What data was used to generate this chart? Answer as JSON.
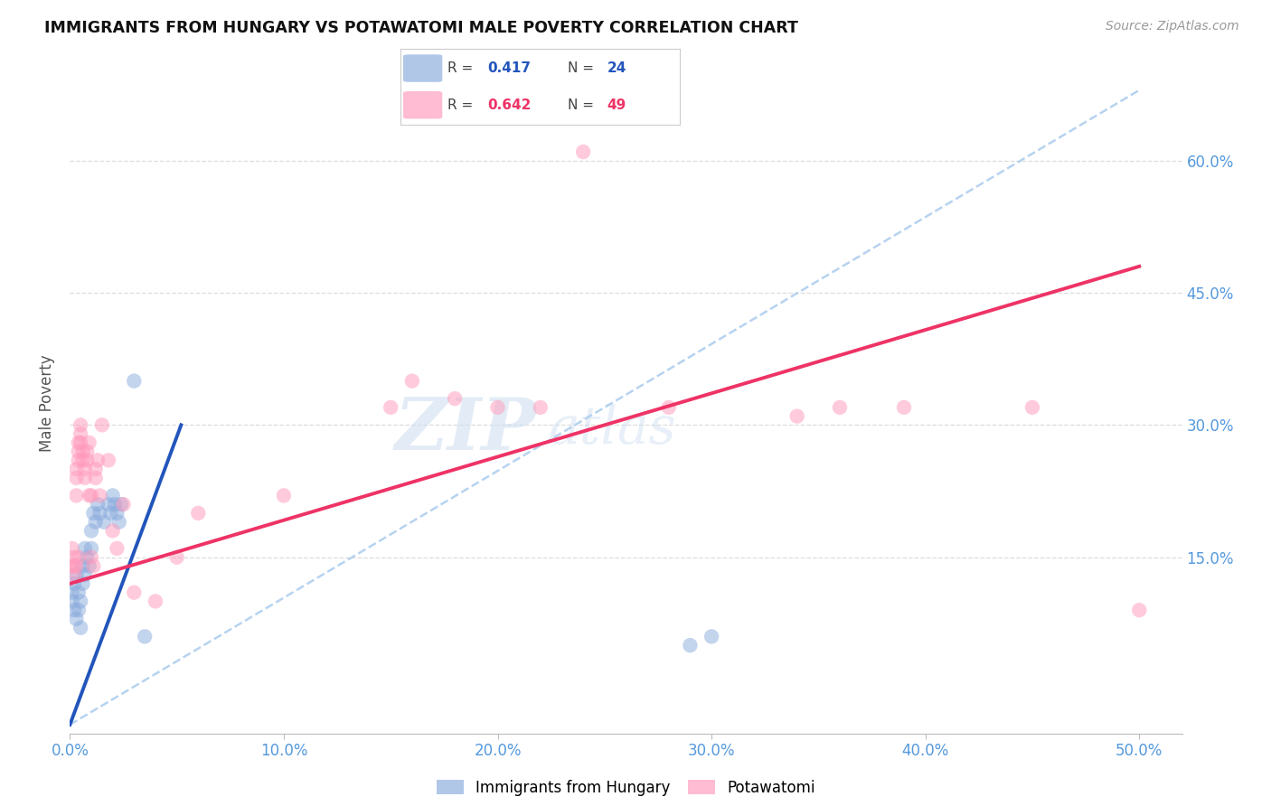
{
  "title": "IMMIGRANTS FROM HUNGARY VS POTAWATOMI MALE POVERTY CORRELATION CHART",
  "source": "Source: ZipAtlas.com",
  "ylabel": "Male Poverty",
  "xlim": [
    0.0,
    0.52
  ],
  "ylim": [
    -0.05,
    0.7
  ],
  "blue_color": "#88AADD",
  "pink_color": "#FF99BB",
  "blue_line_color": "#2255BB",
  "pink_line_color": "#EE3366",
  "dashed_line_color": "#AACCEE",
  "watermark_zip": "ZIP",
  "watermark_atlas": "atlas",
  "yticks": [
    0.15,
    0.3,
    0.45,
    0.6
  ],
  "xticks": [
    0.0,
    0.1,
    0.2,
    0.3,
    0.4,
    0.5
  ],
  "legend_blue_r": "0.417",
  "legend_blue_n": "24",
  "legend_pink_r": "0.642",
  "legend_pink_n": "49",
  "blue_line_x0": 0.0,
  "blue_line_y0": -0.04,
  "blue_line_x1": 0.052,
  "blue_line_y1": 0.3,
  "pink_line_x0": 0.0,
  "pink_line_y0": 0.12,
  "pink_line_x1": 0.5,
  "pink_line_y1": 0.48,
  "dashed_line_x0": 0.0,
  "dashed_line_y0": -0.04,
  "dashed_line_x1": 0.5,
  "dashed_line_y1": 0.68,
  "blue_points_x": [
    0.001,
    0.001,
    0.002,
    0.002,
    0.003,
    0.003,
    0.004,
    0.004,
    0.005,
    0.005,
    0.006,
    0.006,
    0.007,
    0.007,
    0.008,
    0.009,
    0.01,
    0.01,
    0.011,
    0.012,
    0.013,
    0.014,
    0.016,
    0.018,
    0.019,
    0.02,
    0.021,
    0.022,
    0.023,
    0.024,
    0.03,
    0.035,
    0.29,
    0.3
  ],
  "blue_points_y": [
    0.11,
    0.1,
    0.12,
    0.09,
    0.13,
    0.08,
    0.11,
    0.09,
    0.1,
    0.07,
    0.14,
    0.12,
    0.16,
    0.13,
    0.15,
    0.14,
    0.18,
    0.16,
    0.2,
    0.19,
    0.21,
    0.2,
    0.19,
    0.21,
    0.2,
    0.22,
    0.21,
    0.2,
    0.19,
    0.21,
    0.35,
    0.06,
    0.05,
    0.06
  ],
  "pink_points_x": [
    0.001,
    0.001,
    0.002,
    0.002,
    0.002,
    0.003,
    0.003,
    0.003,
    0.003,
    0.004,
    0.004,
    0.004,
    0.004,
    0.005,
    0.005,
    0.005,
    0.006,
    0.006,
    0.007,
    0.007,
    0.008,
    0.008,
    0.009,
    0.009,
    0.01,
    0.01,
    0.011,
    0.012,
    0.012,
    0.013,
    0.014,
    0.015,
    0.018,
    0.02,
    0.022,
    0.025,
    0.03,
    0.04,
    0.05,
    0.06,
    0.1,
    0.15,
    0.16,
    0.18,
    0.2,
    0.22,
    0.24,
    0.28,
    0.34,
    0.36,
    0.39,
    0.45,
    0.5
  ],
  "pink_points_y": [
    0.14,
    0.16,
    0.15,
    0.14,
    0.13,
    0.22,
    0.24,
    0.25,
    0.14,
    0.27,
    0.28,
    0.26,
    0.15,
    0.29,
    0.3,
    0.28,
    0.27,
    0.26,
    0.25,
    0.24,
    0.27,
    0.26,
    0.28,
    0.22,
    0.22,
    0.15,
    0.14,
    0.25,
    0.24,
    0.26,
    0.22,
    0.3,
    0.26,
    0.18,
    0.16,
    0.21,
    0.11,
    0.1,
    0.15,
    0.2,
    0.22,
    0.32,
    0.35,
    0.33,
    0.32,
    0.32,
    0.61,
    0.32,
    0.31,
    0.32,
    0.32,
    0.32,
    0.09
  ]
}
